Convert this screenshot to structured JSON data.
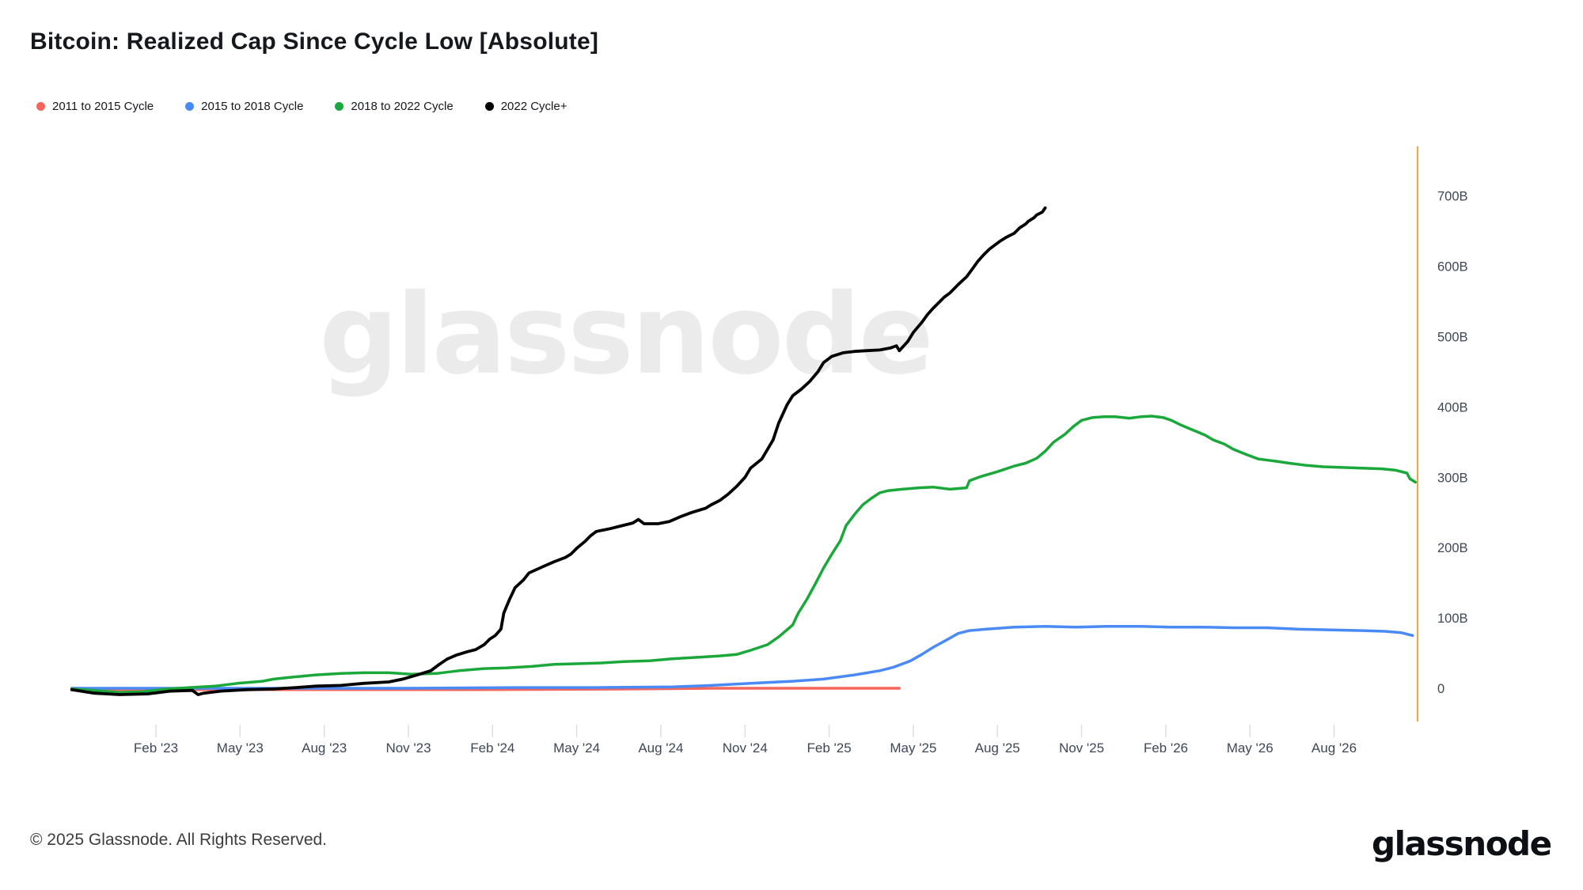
{
  "title": "Bitcoin: Realized Cap Since Cycle Low [Absolute]",
  "watermark": "glassnode",
  "footer": {
    "copyright": "© 2025 Glassnode. All Rights Reserved.",
    "brand": "glassnode"
  },
  "colors": {
    "axis_line": "#f8a23b",
    "tick": "#dedede",
    "axis_text": "#3e4757"
  },
  "chart_data": {
    "type": "line",
    "title": "Bitcoin: Realized Cap Since Cycle Low [Absolute]",
    "x_axis_note": "months since cycle low, labeled with 2022-cycle dates",
    "x_tick_labels": [
      "Feb '23",
      "May '23",
      "Aug '23",
      "Nov '23",
      "Feb '24",
      "May '24",
      "Aug '24",
      "Nov '24",
      "Feb '25",
      "May '25",
      "Aug '25",
      "Nov '25",
      "Feb '26",
      "May '26",
      "Aug '26"
    ],
    "y_tick_labels": [
      "0",
      "100B",
      "200B",
      "300B",
      "400B",
      "500B",
      "600B",
      "700B"
    ],
    "y_tick_values": [
      0,
      100,
      200,
      300,
      400,
      500,
      600,
      700
    ],
    "ylim": [
      -30,
      730
    ],
    "xlim_months": [
      0,
      48
    ],
    "grid": false,
    "legend_position": "top-left",
    "series": [
      {
        "name": "2011 to 2015 Cycle",
        "color": "#f4665c",
        "points": [
          [
            0,
            -1
          ],
          [
            2,
            -2
          ],
          [
            5.9,
            -2
          ],
          [
            10,
            -2
          ],
          [
            14.4,
            -2
          ],
          [
            20,
            -1
          ],
          [
            22.8,
            0
          ],
          [
            25.7,
            0
          ],
          [
            28.5,
            0
          ],
          [
            29.5,
            0
          ]
        ]
      },
      {
        "name": "2015 to 2018 Cycle",
        "color": "#4a8af5",
        "points": [
          [
            0,
            0
          ],
          [
            3.1,
            0
          ],
          [
            7.3,
            0
          ],
          [
            11.6,
            0
          ],
          [
            15.8,
            1
          ],
          [
            18.6,
            1
          ],
          [
            21.4,
            2
          ],
          [
            22.8,
            4
          ],
          [
            24.2,
            7
          ],
          [
            25.7,
            10
          ],
          [
            26.8,
            13
          ],
          [
            27.9,
            19
          ],
          [
            28.8,
            25
          ],
          [
            29.3,
            30
          ],
          [
            29.9,
            39
          ],
          [
            30.3,
            48
          ],
          [
            30.7,
            58
          ],
          [
            31.2,
            69
          ],
          [
            31.6,
            78
          ],
          [
            32,
            82
          ],
          [
            32.6,
            84
          ],
          [
            33.6,
            87
          ],
          [
            34.7,
            88
          ],
          [
            35.8,
            87
          ],
          [
            36.9,
            88
          ],
          [
            38.1,
            88
          ],
          [
            39.2,
            87
          ],
          [
            40.3,
            87
          ],
          [
            41.4,
            86
          ],
          [
            42.6,
            86
          ],
          [
            43.7,
            84
          ],
          [
            44.9,
            83
          ],
          [
            46,
            82
          ],
          [
            46.8,
            81
          ],
          [
            47.4,
            79
          ],
          [
            47.8,
            75
          ]
        ]
      },
      {
        "name": "2018 to 2022 Cycle",
        "color": "#1ba83b",
        "points": [
          [
            0,
            -1
          ],
          [
            0.8,
            -3
          ],
          [
            1.7,
            -6
          ],
          [
            2.5,
            -5
          ],
          [
            3.4,
            -1
          ],
          [
            4.2,
            1
          ],
          [
            5.1,
            3
          ],
          [
            5.9,
            7
          ],
          [
            6.8,
            10
          ],
          [
            7.2,
            13
          ],
          [
            7.9,
            16
          ],
          [
            8.7,
            19
          ],
          [
            9.6,
            21
          ],
          [
            10.4,
            22
          ],
          [
            11.3,
            22
          ],
          [
            12.1,
            20
          ],
          [
            13,
            21
          ],
          [
            13.8,
            25
          ],
          [
            14.7,
            28
          ],
          [
            15.5,
            29
          ],
          [
            16.4,
            31
          ],
          [
            17.2,
            34
          ],
          [
            18.1,
            35
          ],
          [
            18.9,
            36
          ],
          [
            19.7,
            38
          ],
          [
            20.6,
            39
          ],
          [
            21.4,
            42
          ],
          [
            22.3,
            44
          ],
          [
            23.1,
            46
          ],
          [
            23.7,
            48
          ],
          [
            24.2,
            54
          ],
          [
            24.8,
            62
          ],
          [
            25.2,
            73
          ],
          [
            25.7,
            90
          ],
          [
            25.9,
            107
          ],
          [
            26.2,
            126
          ],
          [
            26.5,
            148
          ],
          [
            26.8,
            171
          ],
          [
            27.1,
            191
          ],
          [
            27.4,
            210
          ],
          [
            27.6,
            231
          ],
          [
            27.9,
            247
          ],
          [
            28.2,
            261
          ],
          [
            28.5,
            270
          ],
          [
            28.8,
            278
          ],
          [
            29.1,
            281
          ],
          [
            29.6,
            283
          ],
          [
            30.2,
            285
          ],
          [
            30.7,
            286
          ],
          [
            31.3,
            283
          ],
          [
            31.9,
            285
          ],
          [
            32,
            295
          ],
          [
            32.4,
            301
          ],
          [
            33,
            308
          ],
          [
            33.6,
            316
          ],
          [
            34,
            320
          ],
          [
            34.4,
            327
          ],
          [
            34.7,
            337
          ],
          [
            35,
            350
          ],
          [
            35.4,
            361
          ],
          [
            35.7,
            372
          ],
          [
            36,
            381
          ],
          [
            36.4,
            385
          ],
          [
            36.8,
            386
          ],
          [
            37.2,
            386
          ],
          [
            37.7,
            384
          ],
          [
            38.1,
            386
          ],
          [
            38.5,
            387
          ],
          [
            38.9,
            385
          ],
          [
            39.2,
            381
          ],
          [
            39.5,
            375
          ],
          [
            39.8,
            370
          ],
          [
            40.1,
            365
          ],
          [
            40.4,
            360
          ],
          [
            40.7,
            353
          ],
          [
            41.1,
            347
          ],
          [
            41.4,
            340
          ],
          [
            41.9,
            332
          ],
          [
            42.3,
            326
          ],
          [
            42.9,
            323
          ],
          [
            43.4,
            320
          ],
          [
            44,
            317
          ],
          [
            44.6,
            315
          ],
          [
            45.3,
            314
          ],
          [
            46,
            313
          ],
          [
            46.7,
            312
          ],
          [
            47.2,
            310
          ],
          [
            47.6,
            306
          ],
          [
            47.7,
            298
          ],
          [
            47.9,
            293
          ]
        ]
      },
      {
        "name": "2022 Cycle+",
        "color": "#000000",
        "points": [
          [
            0,
            -2
          ],
          [
            0.8,
            -7
          ],
          [
            1.7,
            -9
          ],
          [
            2.7,
            -8
          ],
          [
            3.5,
            -4
          ],
          [
            4.3,
            -3
          ],
          [
            4.5,
            -9
          ],
          [
            4.7,
            -7
          ],
          [
            5.3,
            -4
          ],
          [
            6.2,
            -2
          ],
          [
            7.2,
            -1
          ],
          [
            8,
            1
          ],
          [
            8.7,
            3
          ],
          [
            9.6,
            4
          ],
          [
            10.4,
            7
          ],
          [
            11.3,
            9
          ],
          [
            11.8,
            13
          ],
          [
            12.4,
            20
          ],
          [
            12.8,
            25
          ],
          [
            13.1,
            34
          ],
          [
            13.4,
            42
          ],
          [
            13.7,
            47
          ],
          [
            14.1,
            52
          ],
          [
            14.4,
            55
          ],
          [
            14.7,
            62
          ],
          [
            14.9,
            70
          ],
          [
            15.1,
            75
          ],
          [
            15.3,
            84
          ],
          [
            15.4,
            107
          ],
          [
            15.6,
            126
          ],
          [
            15.8,
            143
          ],
          [
            16.1,
            154
          ],
          [
            16.3,
            164
          ],
          [
            16.8,
            173
          ],
          [
            17.2,
            180
          ],
          [
            17.6,
            186
          ],
          [
            17.8,
            191
          ],
          [
            18,
            199
          ],
          [
            18.3,
            209
          ],
          [
            18.5,
            217
          ],
          [
            18.7,
            223
          ],
          [
            19.2,
            227
          ],
          [
            19.6,
            231
          ],
          [
            20,
            235
          ],
          [
            20.2,
            240
          ],
          [
            20.4,
            234
          ],
          [
            20.9,
            234
          ],
          [
            21.3,
            237
          ],
          [
            21.7,
            244
          ],
          [
            22.1,
            250
          ],
          [
            22.6,
            256
          ],
          [
            22.8,
            261
          ],
          [
            23.1,
            267
          ],
          [
            23.4,
            276
          ],
          [
            23.7,
            287
          ],
          [
            24,
            300
          ],
          [
            24.2,
            313
          ],
          [
            24.6,
            326
          ],
          [
            25,
            353
          ],
          [
            25.2,
            377
          ],
          [
            25.5,
            403
          ],
          [
            25.7,
            416
          ],
          [
            26,
            425
          ],
          [
            26.3,
            436
          ],
          [
            26.6,
            450
          ],
          [
            26.8,
            463
          ],
          [
            27.1,
            472
          ],
          [
            27.5,
            477
          ],
          [
            27.9,
            479
          ],
          [
            28.3,
            480
          ],
          [
            28.8,
            481
          ],
          [
            29.2,
            484
          ],
          [
            29.4,
            487
          ],
          [
            29.5,
            480
          ],
          [
            29.8,
            493
          ],
          [
            30,
            506
          ],
          [
            30.3,
            520
          ],
          [
            30.5,
            531
          ],
          [
            30.7,
            540
          ],
          [
            30.9,
            548
          ],
          [
            31.1,
            556
          ],
          [
            31.3,
            562
          ],
          [
            31.6,
            574
          ],
          [
            31.9,
            585
          ],
          [
            32.1,
            596
          ],
          [
            32.3,
            607
          ],
          [
            32.5,
            616
          ],
          [
            32.7,
            624
          ],
          [
            32.9,
            630
          ],
          [
            33.1,
            636
          ],
          [
            33.3,
            641
          ],
          [
            33.6,
            647
          ],
          [
            33.8,
            655
          ],
          [
            34,
            660
          ],
          [
            34.1,
            664
          ],
          [
            34.3,
            669
          ],
          [
            34.4,
            673
          ],
          [
            34.6,
            677
          ],
          [
            34.7,
            683
          ]
        ]
      }
    ]
  }
}
